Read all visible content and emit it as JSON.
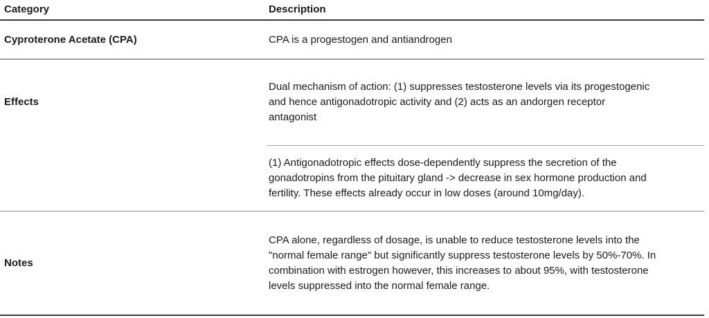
{
  "table": {
    "header": {
      "category": "Category",
      "description": "Description"
    },
    "rows": [
      {
        "category": "Cyproterone Acetate (CPA)",
        "description": "CPA is a progestogen and antiandrogen"
      },
      {
        "category": "Effects",
        "descriptions": [
          "Dual mechanism of action: (1) suppresses testosterone levels via its progestogenic\nand hence antigonadotropic activity and (2) acts as an andorgen receptor\nantagonist",
          "(1) Antigonadotropic effects dose-dependently suppress the secretion of the\ngonadotropins from the pituitary gland -> decrease in sex hormone production and\nfertility. These effects already occur in low doses (around 10mg/day)."
        ]
      },
      {
        "category": "Notes",
        "description": "CPA alone, regardless of dosage, is unable to reduce testosterone levels into the\n\"normal female range\" but significantly suppress testosterone levels by 50%-70%. In\ncombination with estrogen however, this increases to about 95%, with testosterone\nlevels suppressed into the normal female range."
      }
    ],
    "colors": {
      "text": "#1a1a1a",
      "border_strong": "#3b3b3b",
      "border_dark": "#4d4d4d",
      "border_medium": "#8c8c8c",
      "border_light": "#a6a6a6"
    }
  }
}
